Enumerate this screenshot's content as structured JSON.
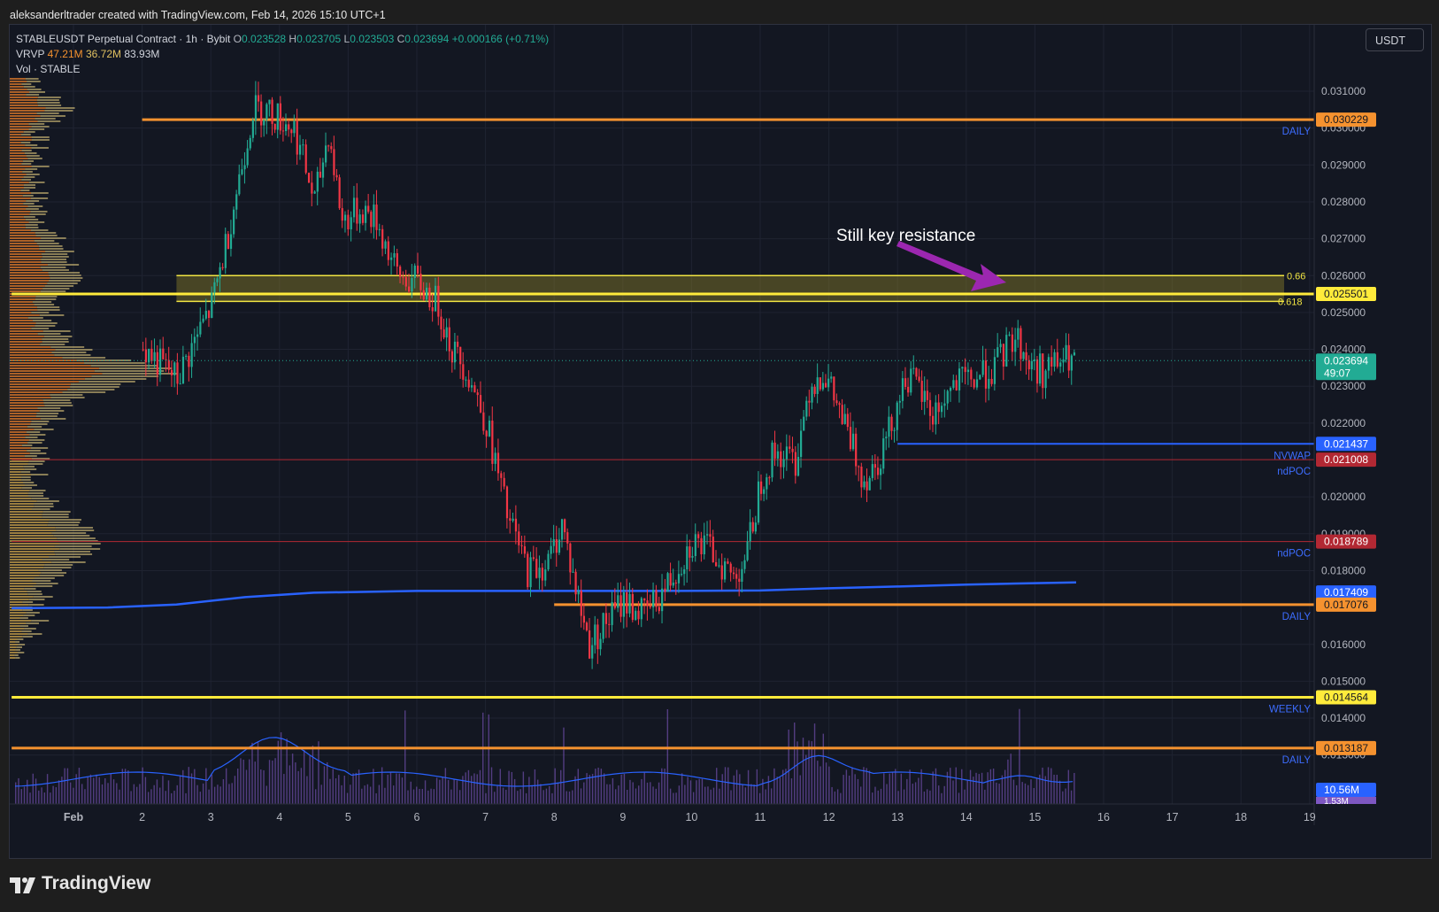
{
  "credit": "aleksanderltrader created with TradingView.com, Feb 14, 2026 15:10 UTC+1",
  "currency_button": "USDT",
  "legend": {
    "symbol": "STABLEUSDT Perpetual Contract · 1h · Bybit",
    "o_key": "O",
    "o_val": "0.023528",
    "h_key": "H",
    "h_val": "0.023705",
    "l_key": "L",
    "l_val": "0.023503",
    "c_key": "C",
    "c_val": "0.023694",
    "change": "+0.000166 (+0.71%)",
    "vrvp_label": "VRVP",
    "vrvp_up": "47.21M",
    "vrvp_down": "36.72M",
    "vrvp_total": "83.93M",
    "vol_label": "Vol · STABLE"
  },
  "annotation": "Still key resistance",
  "colors": {
    "up": "#22ab94",
    "down": "#f23645",
    "daily": "#f5922f",
    "weekly": "#ffeb3b",
    "fib": "#f0e442",
    "vwap": "#2962ff",
    "ndpoc": "#b22833",
    "arrow": "#9c27b0",
    "volume": "#7e57c2"
  },
  "brand": "TradingView",
  "chart_data": {
    "type": "candlestick",
    "symbol": "STABLEUSDT",
    "interval": "1h",
    "exchange": "Bybit",
    "y_axis": {
      "min": 0.0125,
      "max": 0.032,
      "ticks": [
        "0.031000",
        "0.030000",
        "0.029000",
        "0.028000",
        "0.027000",
        "0.026000",
        "0.025000",
        "0.024000",
        "0.023000",
        "0.022000",
        "0.020000",
        "0.019000",
        "0.018000",
        "0.016000",
        "0.015000",
        "0.014000",
        "0.013000"
      ]
    },
    "x_axis": {
      "ticks": [
        "Feb",
        "2",
        "3",
        "4",
        "5",
        "6",
        "7",
        "8",
        "9",
        "10",
        "11",
        "12",
        "13",
        "14",
        "15",
        "16",
        "17",
        "18",
        "19"
      ]
    },
    "price_path": [
      [
        1.0,
        0.024
      ],
      [
        1.5,
        0.0232
      ],
      [
        2.0,
        0.0252
      ],
      [
        2.2,
        0.0268
      ],
      [
        2.6,
        0.0305
      ],
      [
        2.8,
        0.0305
      ],
      [
        3.2,
        0.03
      ],
      [
        3.5,
        0.028
      ],
      [
        3.7,
        0.0299
      ],
      [
        3.9,
        0.0275
      ],
      [
        4.2,
        0.0278
      ],
      [
        4.4,
        0.0275
      ],
      [
        4.7,
        0.026
      ],
      [
        5.0,
        0.0258
      ],
      [
        5.3,
        0.0252
      ],
      [
        5.5,
        0.024
      ],
      [
        5.7,
        0.0235
      ],
      [
        6.0,
        0.022
      ],
      [
        6.3,
        0.0195
      ],
      [
        6.6,
        0.018
      ],
      [
        6.9,
        0.0182
      ],
      [
        7.1,
        0.0193
      ],
      [
        7.3,
        0.0175
      ],
      [
        7.5,
        0.016
      ],
      [
        7.7,
        0.0165
      ],
      [
        8.0,
        0.0172
      ],
      [
        8.3,
        0.0168
      ],
      [
        8.6,
        0.0175
      ],
      [
        9.0,
        0.0188
      ],
      [
        9.3,
        0.0185
      ],
      [
        9.6,
        0.0178
      ],
      [
        9.8,
        0.0185
      ],
      [
        10.0,
        0.0205
      ],
      [
        10.2,
        0.0212
      ],
      [
        10.5,
        0.021
      ],
      [
        10.7,
        0.023
      ],
      [
        10.9,
        0.0234
      ],
      [
        11.1,
        0.0225
      ],
      [
        11.3,
        0.0215
      ],
      [
        11.5,
        0.0205
      ],
      [
        11.7,
        0.021
      ],
      [
        11.9,
        0.022
      ],
      [
        12.1,
        0.0233
      ],
      [
        12.3,
        0.0229
      ],
      [
        12.5,
        0.0222
      ],
      [
        12.8,
        0.023
      ],
      [
        13.1,
        0.0232
      ],
      [
        13.4,
        0.0235
      ],
      [
        13.7,
        0.0244
      ],
      [
        13.9,
        0.0236
      ],
      [
        14.1,
        0.0234
      ],
      [
        14.4,
        0.0237
      ],
      [
        14.6,
        0.0237
      ]
    ],
    "last_price": {
      "value": "0.023694",
      "countdown": "49:07"
    },
    "levels": [
      {
        "label": "0.030229",
        "tag": "DAILY",
        "price": 0.030229,
        "color": "#f5922f",
        "from_x": 1.0
      },
      {
        "label": "0.025501",
        "tag": "",
        "price": 0.025501,
        "color": "#ffeb3b",
        "from_x": -0.9
      },
      {
        "label": "0.021437",
        "tag": "NVWAP",
        "price": 0.021437,
        "color": "#2962ff",
        "from_x": 12.0
      },
      {
        "label": "0.021008",
        "tag": "ndPOC",
        "price": 0.021008,
        "color": "#b22833",
        "from_x": -0.9
      },
      {
        "label": "0.018789",
        "tag": "ndPOC",
        "price": 0.018789,
        "color": "#b22833",
        "from_x": -0.9
      },
      {
        "label": "0.017409",
        "tag": "",
        "price": 0.017409,
        "color": "#2962ff",
        "from_x": null
      },
      {
        "label": "0.017076",
        "tag": "DAILY",
        "price": 0.017076,
        "color": "#f5922f",
        "from_x": 7.0
      },
      {
        "label": "0.014564",
        "tag": "WEEKLY",
        "price": 0.014564,
        "color": "#ffeb3b",
        "from_x": -0.9
      },
      {
        "label": "0.013187",
        "tag": "DAILY",
        "price": 0.013187,
        "color": "#f5922f",
        "from_x": -0.9
      }
    ],
    "fib_zone": {
      "top": {
        "label": "0.66",
        "price": 0.026
      },
      "bottom": {
        "label": "0.618",
        "price": 0.0253
      },
      "from_x": 1.5
    },
    "vwap_path": [
      [
        -0.9,
        0.01698
      ],
      [
        0.5,
        0.017
      ],
      [
        1.5,
        0.01708
      ],
      [
        2.5,
        0.01728
      ],
      [
        3.5,
        0.0174
      ],
      [
        5.0,
        0.01745
      ],
      [
        6.5,
        0.01745
      ],
      [
        8.5,
        0.01745
      ],
      [
        10.0,
        0.01746
      ],
      [
        11.0,
        0.01752
      ],
      [
        12.0,
        0.01757
      ],
      [
        13.0,
        0.01762
      ],
      [
        14.0,
        0.01766
      ],
      [
        14.6,
        0.01768
      ]
    ],
    "volume": {
      "last_label": "10.56M",
      "prev_label": "1.53M"
    },
    "volume_profile_note": "VRVP histogram on left side"
  }
}
